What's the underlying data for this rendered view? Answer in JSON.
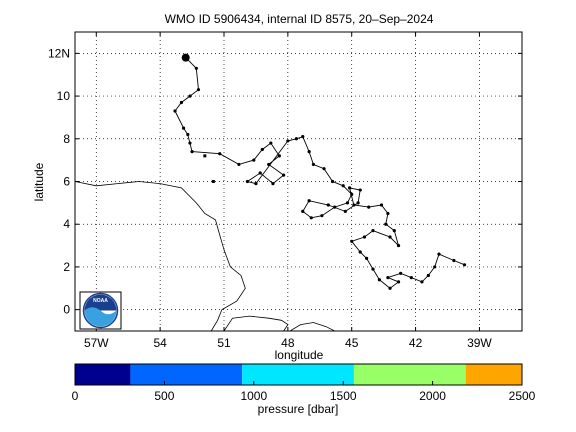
{
  "chart_data": [
    {
      "type": "scatter",
      "title": "WMO ID 5906434, internal ID 8575, 20–Sep–2024",
      "xlabel": "longitude",
      "ylabel": "latitude",
      "xlim": [
        -58,
        -37
      ],
      "ylim": [
        -1,
        13
      ],
      "grid": true,
      "xticks": [
        {
          "v": -57,
          "label": "57W"
        },
        {
          "v": -54,
          "label": "54"
        },
        {
          "v": -51,
          "label": "51"
        },
        {
          "v": -48,
          "label": "48"
        },
        {
          "v": -45,
          "label": "45"
        },
        {
          "v": -42,
          "label": "42"
        },
        {
          "v": -39,
          "label": "39W"
        }
      ],
      "yticks": [
        {
          "v": 0,
          "label": "0"
        },
        {
          "v": 2,
          "label": "2"
        },
        {
          "v": 4,
          "label": "4"
        },
        {
          "v": 6,
          "label": "6"
        },
        {
          "v": 8,
          "label": "8"
        },
        {
          "v": 10,
          "label": "10"
        },
        {
          "v": 12,
          "label": "12N"
        }
      ],
      "start_marker": [
        -52.8,
        11.8
      ],
      "trajectory": [
        [
          -52.8,
          11.8
        ],
        [
          -52.3,
          11.3
        ],
        [
          -52.2,
          10.3
        ],
        [
          -52.6,
          10.0
        ],
        [
          -53.0,
          9.7
        ],
        [
          -53.3,
          9.3
        ],
        [
          -52.9,
          8.5
        ],
        [
          -52.7,
          8.2
        ],
        [
          -52.6,
          7.8
        ],
        [
          -52.5,
          7.4
        ],
        [
          -51.2,
          7.3
        ],
        [
          -50.3,
          6.8
        ],
        [
          -49.6,
          7.0
        ],
        [
          -49.2,
          7.5
        ],
        [
          -48.8,
          7.8
        ],
        [
          -48.4,
          7.2
        ],
        [
          -48.9,
          6.8
        ],
        [
          -48.2,
          6.3
        ],
        [
          -48.7,
          5.9
        ],
        [
          -49.3,
          6.4
        ],
        [
          -49.9,
          6.0
        ],
        [
          -49.5,
          5.9
        ],
        [
          -48.0,
          7.9
        ],
        [
          -47.6,
          8.0
        ],
        [
          -47.3,
          8.1
        ],
        [
          -47.0,
          7.4
        ],
        [
          -46.8,
          6.8
        ],
        [
          -46.3,
          6.6
        ],
        [
          -45.9,
          6.0
        ],
        [
          -45.4,
          5.8
        ],
        [
          -45.0,
          5.4
        ],
        [
          -45.2,
          5.0
        ],
        [
          -45.8,
          4.8
        ],
        [
          -46.4,
          4.4
        ],
        [
          -46.9,
          4.3
        ],
        [
          -47.3,
          4.6
        ],
        [
          -47.0,
          5.1
        ],
        [
          -46.1,
          4.9
        ],
        [
          -45.3,
          4.6
        ],
        [
          -44.7,
          5.0
        ],
        [
          -44.6,
          5.6
        ],
        [
          -45.1,
          5.7
        ],
        [
          -44.9,
          4.9
        ],
        [
          -44.2,
          4.8
        ],
        [
          -43.6,
          4.9
        ],
        [
          -43.3,
          4.5
        ],
        [
          -43.4,
          4.0
        ],
        [
          -43.0,
          3.7
        ],
        [
          -42.8,
          3.0
        ],
        [
          -43.2,
          3.4
        ],
        [
          -44.0,
          3.7
        ],
        [
          -44.4,
          3.4
        ],
        [
          -45.0,
          3.2
        ],
        [
          -44.6,
          2.7
        ],
        [
          -44.3,
          2.4
        ],
        [
          -44.0,
          1.9
        ],
        [
          -43.7,
          1.4
        ],
        [
          -43.2,
          1.0
        ],
        [
          -42.8,
          1.3
        ],
        [
          -43.3,
          1.5
        ],
        [
          -42.7,
          1.7
        ],
        [
          -42.2,
          1.5
        ],
        [
          -41.7,
          1.3
        ],
        [
          -41.4,
          1.6
        ],
        [
          -41.1,
          2.0
        ],
        [
          -40.9,
          2.6
        ],
        [
          -40.2,
          2.3
        ],
        [
          -39.7,
          2.1
        ]
      ],
      "isolated_points": [
        [
          -51.9,
          7.2
        ],
        [
          -51.5,
          6.0
        ]
      ],
      "coastline": [
        [
          -58.0,
          6.0
        ],
        [
          -57.0,
          5.8
        ],
        [
          -56.0,
          5.9
        ],
        [
          -55.0,
          6.0
        ],
        [
          -54.0,
          5.9
        ],
        [
          -53.0,
          5.7
        ],
        [
          -52.3,
          5.0
        ],
        [
          -51.9,
          4.5
        ],
        [
          -51.4,
          4.2
        ],
        [
          -51.2,
          3.5
        ],
        [
          -51.0,
          2.8
        ],
        [
          -50.7,
          2.0
        ],
        [
          -50.2,
          1.6
        ],
        [
          -50.0,
          1.0
        ],
        [
          -50.4,
          0.4
        ],
        [
          -51.1,
          0.0
        ],
        [
          -51.3,
          -0.5
        ],
        [
          -51.6,
          -1.0
        ]
      ],
      "island": [
        [
          -51.0,
          -1.0
        ],
        [
          -50.6,
          -0.4
        ],
        [
          -49.8,
          -0.3
        ],
        [
          -48.9,
          -0.4
        ],
        [
          -48.3,
          -0.5
        ],
        [
          -48.0,
          -0.7
        ],
        [
          -48.2,
          -1.0
        ]
      ],
      "coast_east": [
        [
          -47.9,
          -1.0
        ],
        [
          -47.4,
          -0.7
        ],
        [
          -46.8,
          -0.6
        ],
        [
          -46.2,
          -0.8
        ],
        [
          -45.8,
          -1.0
        ]
      ]
    },
    {
      "type": "colorbar",
      "label": "pressure [dbar]",
      "ticks": [
        0,
        500,
        1000,
        1500,
        2000,
        2500
      ],
      "range": [
        0,
        2500
      ],
      "bands": [
        {
          "from": 0,
          "to": 310,
          "color": "#00008f"
        },
        {
          "from": 310,
          "to": 935,
          "color": "#0066ff"
        },
        {
          "from": 935,
          "to": 1560,
          "color": "#00e6ff"
        },
        {
          "from": 1560,
          "to": 2185,
          "color": "#99ff66"
        },
        {
          "from": 2185,
          "to": 2500,
          "color": "#ffa500"
        }
      ]
    }
  ],
  "logo": {
    "text": "NOAA",
    "ring_color": "#1a3f8f",
    "wave_color": "#3aa1e0"
  },
  "colors": {
    "track": "#000000",
    "coast": "#000000",
    "grid": "#000000"
  }
}
